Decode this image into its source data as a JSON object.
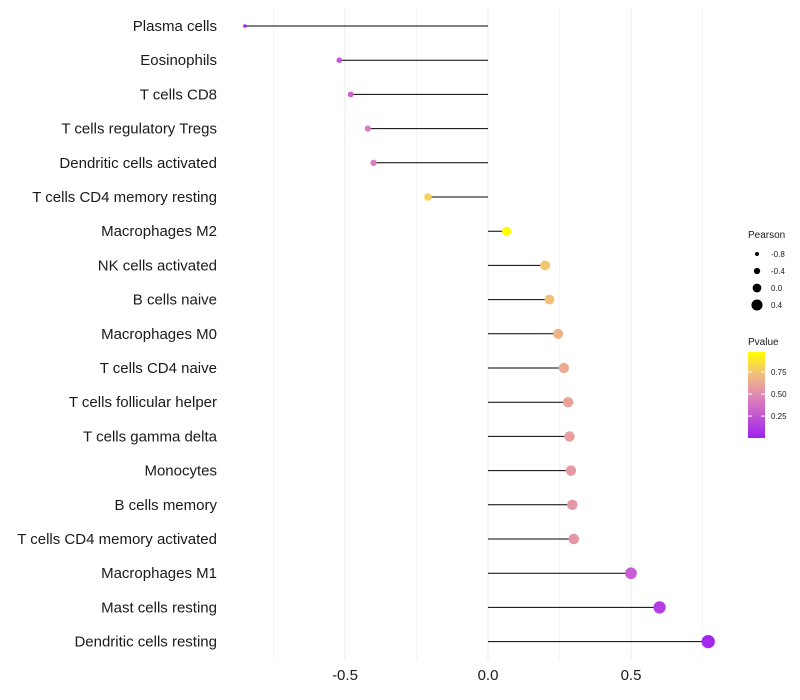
{
  "chart_data": {
    "type": "lollipop",
    "title": "",
    "xlabel": "",
    "ylabel": "",
    "xlim": [
      -0.95,
      0.85
    ],
    "x_ticks": [
      -0.5,
      0.0,
      0.5
    ],
    "x_tick_labels": [
      "-0.5",
      "0.0",
      "0.5"
    ],
    "grid": true,
    "categories": [
      "Plasma cells",
      "Eosinophils",
      "T cells CD8",
      "T cells regulatory  Tregs",
      "Dendritic cells activated",
      "T cells CD4 memory resting",
      "Macrophages M2",
      "NK cells activated",
      "B cells naive",
      "Macrophages M0",
      "T cells CD4 naive",
      "T cells follicular helper",
      "T cells gamma delta",
      "Monocytes",
      "B cells memory",
      "T cells CD4 memory activated",
      "Macrophages M1",
      "Mast cells resting",
      "Dendritic cells resting"
    ],
    "pearson": [
      -0.85,
      -0.52,
      -0.48,
      -0.42,
      -0.4,
      -0.21,
      0.065,
      0.2,
      0.215,
      0.245,
      0.265,
      0.28,
      0.285,
      0.29,
      0.295,
      0.3,
      0.5,
      0.6,
      0.77
    ],
    "pvalue": [
      0.02,
      0.22,
      0.28,
      0.4,
      0.42,
      0.8,
      0.98,
      0.76,
      0.74,
      0.68,
      0.64,
      0.6,
      0.58,
      0.56,
      0.55,
      0.55,
      0.25,
      0.12,
      0.03
    ],
    "legend": {
      "position": "right",
      "size_title": "Pearson",
      "size_breaks": [
        -0.8,
        -0.4,
        0.0,
        0.4
      ],
      "size_labels": [
        "-0.8",
        "-0.4",
        "0.0",
        "0.4"
      ],
      "color_title": "Pvalue",
      "color_breaks": [
        0.25,
        0.5,
        0.75
      ],
      "color_labels": [
        "0.25",
        "0.50",
        "0.75"
      ],
      "color_range": [
        0.0,
        0.98
      ],
      "color_low": "#a020f0",
      "color_high": "#ffff00"
    }
  }
}
